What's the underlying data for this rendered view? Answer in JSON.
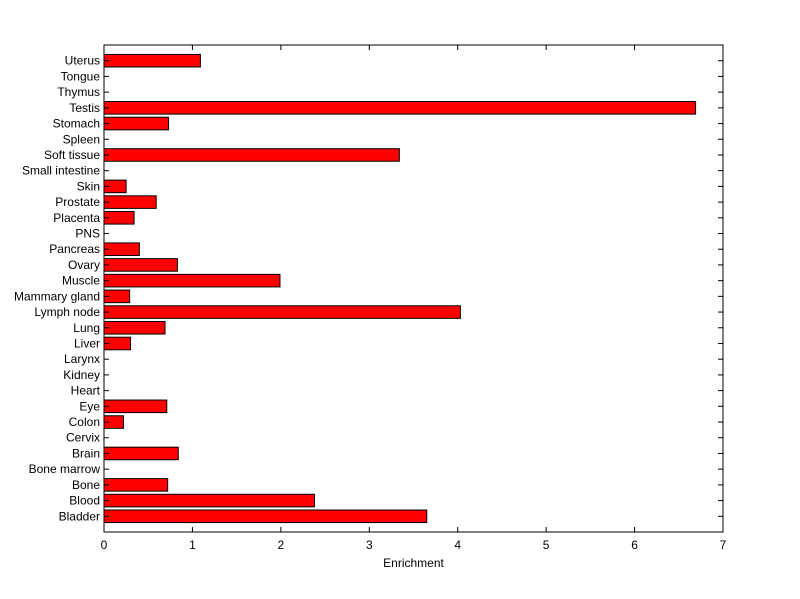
{
  "chart_data": {
    "type": "bar",
    "orientation": "horizontal",
    "title": "",
    "xlabel": "Enrichment",
    "ylabel": "",
    "xlim": [
      0,
      7
    ],
    "xticks": [
      0,
      1,
      2,
      3,
      4,
      5,
      6,
      7
    ],
    "grid": false,
    "legend": "none",
    "bar_color": "#ff0000",
    "edge_color": "#000000",
    "categories": [
      "Bladder",
      "Blood",
      "Bone",
      "Bone marrow",
      "Brain",
      "Cervix",
      "Colon",
      "Eye",
      "Heart",
      "Kidney",
      "Larynx",
      "Liver",
      "Lung",
      "Lymph node",
      "Mammary gland",
      "Muscle",
      "Ovary",
      "Pancreas",
      "PNS",
      "Placenta",
      "Prostate",
      "Skin",
      "Small intestine",
      "Soft tissue",
      "Spleen",
      "Stomach",
      "Testis",
      "Thymus",
      "Tongue",
      "Uterus"
    ],
    "values": [
      3.65,
      2.38,
      0.72,
      0,
      0.84,
      0,
      0.22,
      0.71,
      0,
      0,
      0,
      0.3,
      0.69,
      4.03,
      0.29,
      1.99,
      0.83,
      0.4,
      0,
      0.34,
      0.59,
      0.25,
      0,
      3.34,
      0,
      0.73,
      6.69,
      0,
      0,
      1.09
    ]
  }
}
